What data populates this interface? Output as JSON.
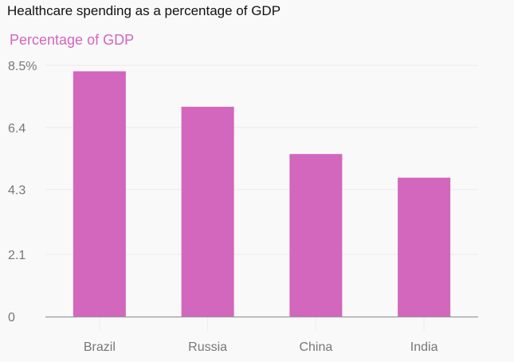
{
  "colors": {
    "bar": "#d366bd",
    "subtitle": "#d366bd",
    "grid": "#ececec",
    "axis": "#9a9a9a",
    "tick_text": "#777777"
  },
  "chart_data": {
    "type": "bar",
    "title": "Healthcare spending as a percentage of GDP",
    "subtitle": "Percentage of GDP",
    "categories": [
      "Brazil",
      "Russia",
      "China",
      "India"
    ],
    "values": [
      8.3,
      7.1,
      5.5,
      4.7
    ],
    "unit": "%",
    "ylim": [
      0,
      8.5
    ],
    "yticks": [
      0,
      2.1,
      4.3,
      6.4,
      8.5
    ],
    "ytick_labels": [
      "0",
      "2.1",
      "4.3",
      "6.4",
      "8.5%"
    ],
    "grid": true,
    "legend": "none"
  }
}
